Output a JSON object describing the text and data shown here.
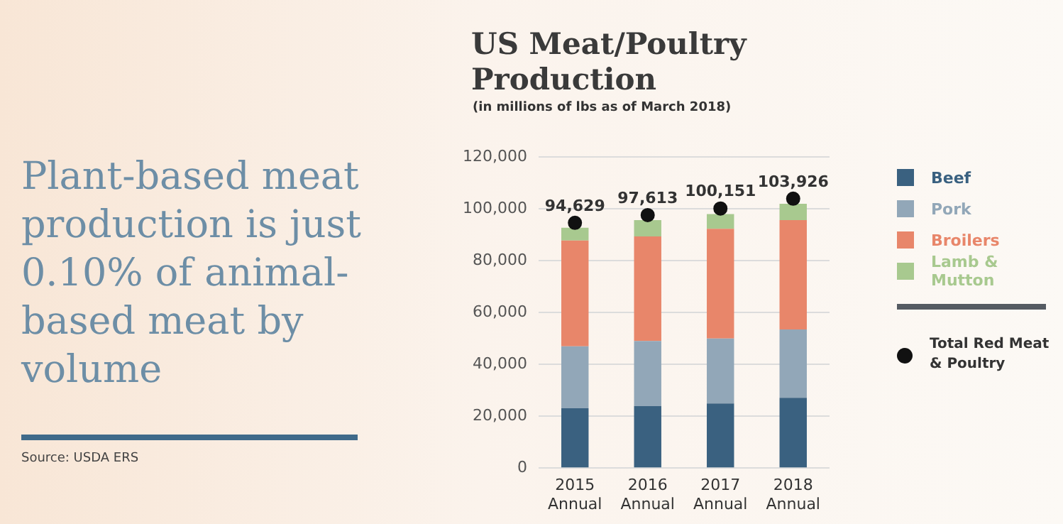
{
  "chart_data": {
    "type": "bar",
    "title": "US Meat/Poultry Production",
    "subtitle": "(in millions of lbs as of March 2018)",
    "annotations": [
      "Plant-based meat production is just 0.10% of animal-based meat by volume",
      "Source: USDA ERS"
    ],
    "categories": [
      "2015 Annual",
      "2016 Annual",
      "2017 Annual",
      "2018 Annual"
    ],
    "stacked": true,
    "series": [
      {
        "name": "Beef",
        "color": "#3a6180",
        "values": [
          23100,
          23900,
          24900,
          27100
        ]
      },
      {
        "name": "Pork",
        "color": "#92a7b8",
        "values": [
          23900,
          25100,
          25100,
          26400
        ]
      },
      {
        "name": "Broilers",
        "color": "#e8866a",
        "values": [
          40800,
          40400,
          42300,
          42200
        ]
      },
      {
        "name": "Lamb & Mutton",
        "color": "#a8c98f",
        "values": [
          4900,
          6300,
          5700,
          6300
        ]
      },
      {
        "name": "Total Red Meat & Poultry",
        "type": "scatter",
        "color": "#111111",
        "values": [
          94629,
          97613,
          100151,
          103926
        ],
        "value_labels": [
          "94,629",
          "97,613",
          "100,151",
          "103,926"
        ]
      }
    ],
    "ylim": [
      0,
      120000
    ],
    "yticks": [
      0,
      {
        "value": 20000,
        "label": "20,000"
      },
      {
        "value": 40000,
        "label": "40,000"
      },
      {
        "value": 60000,
        "label": "60,000"
      },
      {
        "value": 80000,
        "label": "80,000"
      },
      {
        "value": 100000,
        "label": "100,000"
      },
      {
        "value": 120000,
        "label": "120,000"
      }
    ],
    "grid": "y",
    "legend": "right",
    "marker": "circle"
  }
}
